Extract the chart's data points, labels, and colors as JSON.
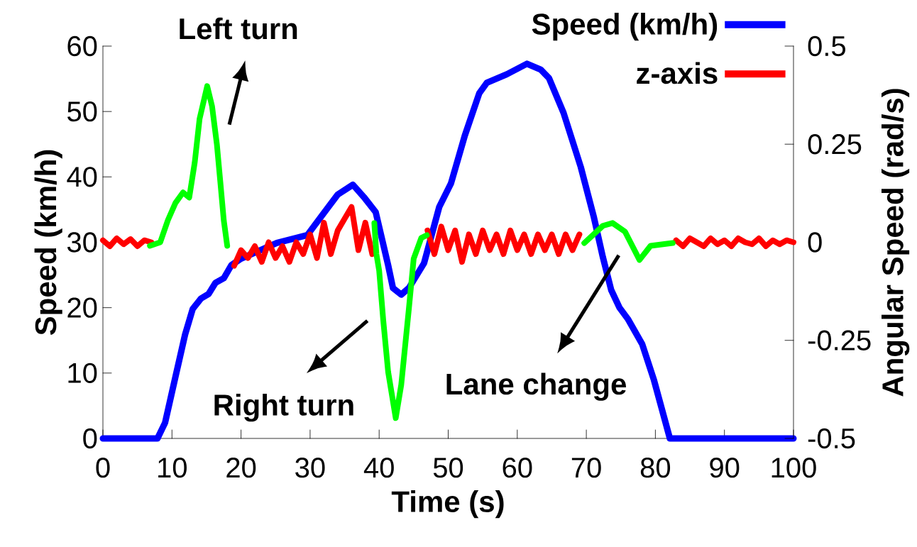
{
  "chart_data": {
    "type": "line",
    "xlabel": "Time (s)",
    "ylabel": "Speed (km/h)",
    "y2label": "Angular Speed (rad/s)",
    "xlim": [
      0,
      100
    ],
    "xticks": [
      0,
      10,
      20,
      30,
      40,
      50,
      60,
      70,
      80,
      90,
      100
    ],
    "ylim": [
      0,
      60
    ],
    "yticks": [
      0,
      10,
      20,
      30,
      40,
      50,
      60
    ],
    "y2lim": [
      -0.5,
      0.5
    ],
    "y2ticks": [
      -0.5,
      -0.25,
      0,
      0.25,
      0.5
    ],
    "legend": "top right",
    "annotations": [
      "Left turn",
      "Right turn",
      "Lane change"
    ],
    "series": [
      {
        "name": "Speed (km/h)",
        "color": "#0000ff",
        "x": [
          0,
          7.9,
          9,
          10.5,
          11.9,
          13,
          14.2,
          15.3,
          16.3,
          17.5,
          18.6,
          20,
          25.2,
          29.6,
          31.8,
          34,
          36.2,
          37.8,
          39.5,
          41.3,
          42,
          43.2,
          44.3,
          46.5,
          48.7,
          50.4,
          52.4,
          54.5,
          55.6,
          58.5,
          61.4,
          63.4,
          64.6,
          66.7,
          69.2,
          71.1,
          72.4,
          73.6,
          74.8,
          76,
          78.1,
          79.8,
          82.1,
          100
        ],
        "values": [
          0,
          0,
          2.4,
          9.4,
          15.9,
          19.8,
          21.4,
          22.1,
          23.8,
          24.5,
          26.5,
          27.5,
          29.9,
          31.1,
          34.2,
          37.3,
          38.8,
          36.9,
          34.6,
          26.5,
          23,
          22,
          23,
          26.8,
          35.4,
          39,
          46.3,
          52.8,
          54.4,
          55.7,
          57.3,
          56.4,
          55.1,
          49.8,
          41.5,
          33.8,
          27.7,
          22.7,
          20,
          18.3,
          14.4,
          8.9,
          0,
          0
        ]
      },
      {
        "name": "z-axis",
        "color": "#ff0000",
        "axis": "y2",
        "x": [
          0,
          1,
          2,
          3,
          4,
          5,
          6,
          7,
          12,
          19,
          20,
          21,
          22,
          23,
          24,
          25,
          26,
          27,
          28,
          29,
          30,
          31,
          32,
          33,
          34,
          35,
          36,
          37,
          38,
          39,
          43,
          47,
          48,
          49,
          50,
          51,
          52,
          53,
          54,
          55,
          56,
          57,
          58,
          59,
          60,
          61,
          62,
          63,
          64,
          65,
          66,
          67,
          68,
          69,
          76,
          83,
          84,
          85,
          86,
          87,
          88,
          89,
          90,
          91,
          92,
          93,
          94,
          95,
          96,
          97,
          98,
          99,
          100
        ],
        "values": [
          0.005,
          -0.01,
          0.01,
          -0.005,
          0.008,
          -0.01,
          0.005,
          0,
          null,
          -0.06,
          -0.02,
          -0.04,
          -0.01,
          -0.05,
          0.0,
          -0.04,
          -0.01,
          -0.05,
          0.0,
          -0.03,
          0.02,
          -0.04,
          0.05,
          -0.03,
          0.03,
          0.06,
          0.09,
          -0.02,
          0.05,
          -0.03,
          null,
          0.03,
          -0.03,
          0.04,
          -0.02,
          0.03,
          -0.05,
          0.02,
          -0.03,
          0.03,
          -0.02,
          0.02,
          -0.03,
          0.03,
          -0.02,
          0.02,
          -0.03,
          0.02,
          -0.02,
          0.02,
          -0.03,
          0.02,
          -0.02,
          0.02,
          null,
          0.005,
          -0.01,
          0.01,
          0,
          -0.01,
          0.01,
          -0.005,
          0.005,
          -0.01,
          0.01,
          0,
          -0.005,
          0.01,
          -0.01,
          0.005,
          -0.005,
          0.005,
          0
        ]
      },
      {
        "color": "#00ff00",
        "axis": "y2",
        "x": [
          6.8,
          8.3,
          9.4,
          10.5,
          11.6,
          12.5,
          13.3,
          14,
          15.1,
          15.8,
          16.5,
          17,
          17.5,
          18,
          28,
          39.3,
          39.6,
          40.0,
          40.6,
          41.3,
          42.4,
          43.2,
          44.3,
          45,
          46.1,
          46.9,
          58,
          69.7,
          72.4,
          73.8,
          75.6,
          77.7,
          79.3,
          82.5
        ],
        "values": [
          -0.009,
          0,
          0.056,
          0.1,
          0.127,
          0.114,
          0.204,
          0.315,
          0.398,
          0.347,
          0.25,
          0.154,
          0.056,
          -0.009,
          null,
          0.049,
          -0.03,
          -0.072,
          -0.2,
          -0.33,
          -0.448,
          -0.363,
          -0.17,
          -0.042,
          0.011,
          0.018,
          null,
          -0.002,
          0.042,
          0.049,
          0.027,
          -0.045,
          -0.009,
          -0.002
        ]
      }
    ]
  }
}
